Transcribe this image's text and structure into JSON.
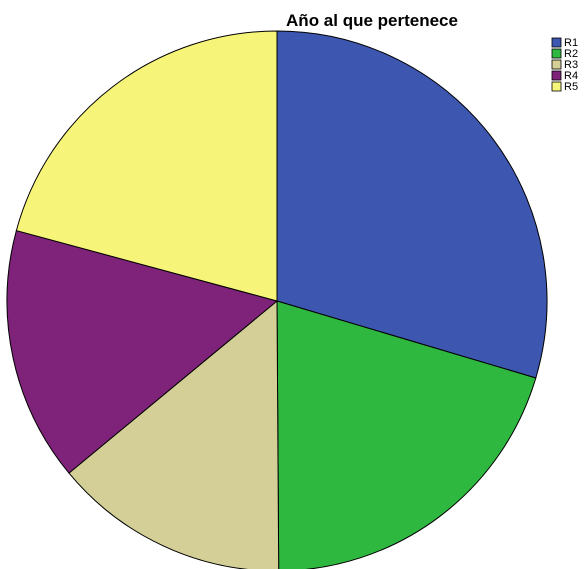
{
  "chart_data": {
    "type": "pie",
    "title": "Año al que pertenece",
    "categories": [
      "R1",
      "R2",
      "R3",
      "R4",
      "R5"
    ],
    "values": [
      29.6,
      20.3,
      14.1,
      15.2,
      20.8
    ],
    "start_angle_deg": 0,
    "direction": "clockwise",
    "colors": [
      "#3d57b0",
      "#2fb83f",
      "#d4cf97",
      "#7e2379",
      "#f7f47a"
    ],
    "legend": {
      "placement": "top-right",
      "entries": [
        "R1",
        "R2",
        "R3",
        "R4",
        "R5"
      ]
    }
  }
}
